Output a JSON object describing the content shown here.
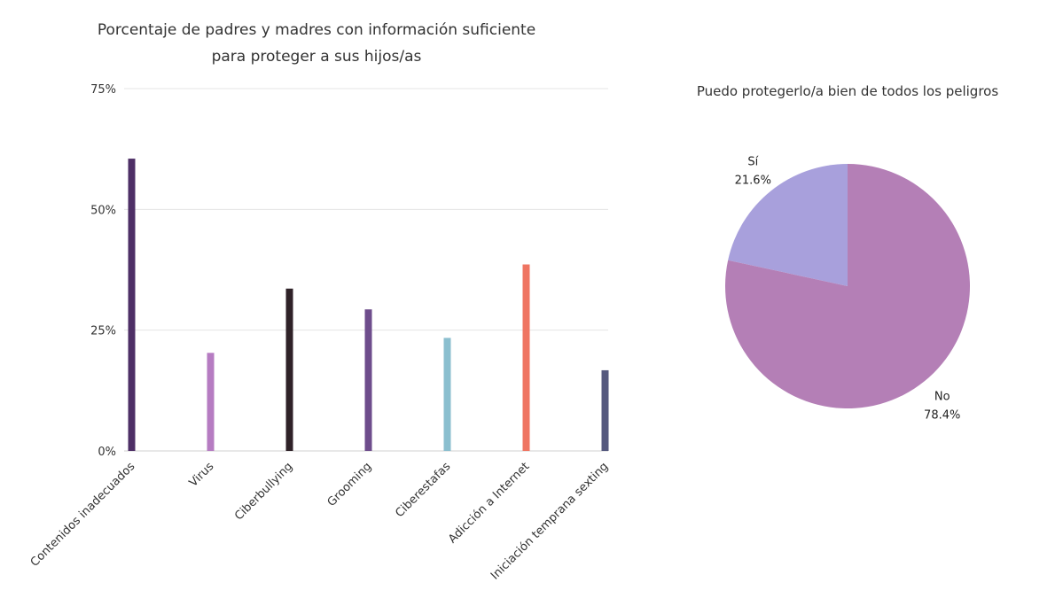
{
  "chart_data": [
    {
      "type": "bar",
      "title_lines": [
        "Porcentaje de padres y madres con información suficiente",
        "para proteger a sus hijos/as"
      ],
      "categories": [
        "Contenidos inadecuados",
        "Virus",
        "Ciberbullying",
        "Grooming",
        "Ciberestafas",
        "Adicción a Internet",
        "Iniciación temprana sexting"
      ],
      "values": [
        60.5,
        20.3,
        33.6,
        29.3,
        23.4,
        38.6,
        16.7
      ],
      "colors": [
        "#4e2f66",
        "#b67cc2",
        "#2f2228",
        "#6e4d8c",
        "#8bbfcf",
        "#ef7562",
        "#55597e"
      ],
      "ylim": [
        0,
        75
      ],
      "yticks": [
        "0%",
        "25%",
        "50%",
        "75%"
      ],
      "grid": true
    },
    {
      "type": "pie",
      "title": "Puedo protegerlo/a bien de todos los peligros",
      "slices": [
        {
          "label": "Sí",
          "value": 21.6,
          "value_label": "21.6%",
          "color": "#a8a0dc"
        },
        {
          "label": "No",
          "value": 78.4,
          "value_label": "78.4%",
          "color": "#b47fb6"
        }
      ]
    }
  ]
}
